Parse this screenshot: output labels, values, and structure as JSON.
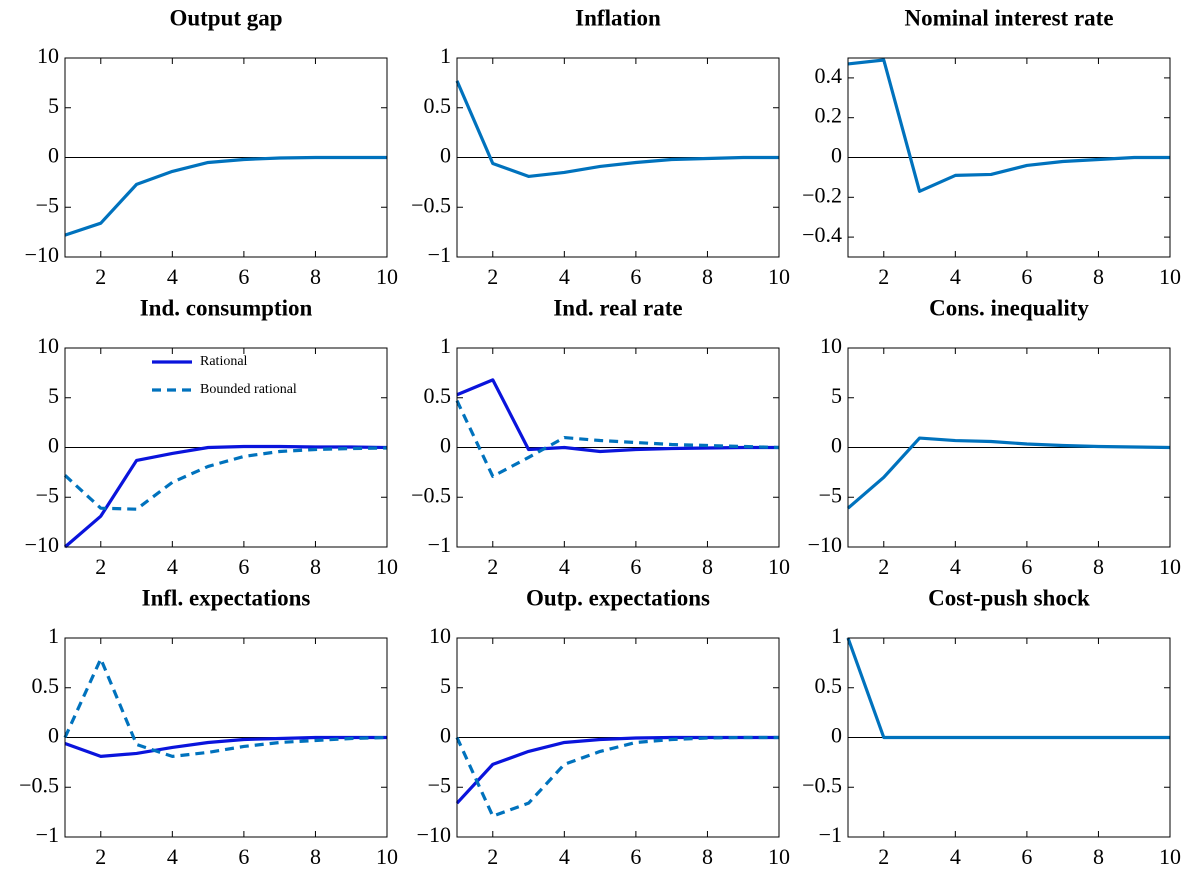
{
  "chart_data": [
    {
      "type": "line",
      "title": "Output gap",
      "x": [
        1,
        2,
        3,
        4,
        5,
        6,
        7,
        8,
        9,
        10
      ],
      "xlim": [
        1,
        10
      ],
      "xticks": [
        2,
        4,
        6,
        8,
        10
      ],
      "ylim": [
        -10,
        10
      ],
      "yticks": [
        {
          "value": -10,
          "label": "−10"
        },
        {
          "value": -5,
          "label": "−5"
        },
        0,
        5,
        10
      ],
      "color": "#0072bd",
      "values": [
        -7.8,
        -6.6,
        -2.7,
        -1.4,
        -0.5,
        -0.2,
        -0.05,
        0,
        0,
        0
      ]
    },
    {
      "type": "line",
      "title": "Inflation",
      "x": [
        1,
        2,
        3,
        4,
        5,
        6,
        7,
        8,
        9,
        10
      ],
      "xlim": [
        1,
        10
      ],
      "xticks": [
        2,
        4,
        6,
        8,
        10
      ],
      "ylim": [
        -1,
        1
      ],
      "yticks": [
        {
          "value": -1,
          "label": "−1"
        },
        {
          "value": -0.5,
          "label": "−0.5"
        },
        0,
        0.5,
        1
      ],
      "color": "#0072bd",
      "values": [
        0.77,
        -0.06,
        -0.19,
        -0.15,
        -0.09,
        -0.05,
        -0.02,
        -0.01,
        0,
        0
      ]
    },
    {
      "type": "line",
      "title": "Nominal interest rate",
      "x": [
        1,
        2,
        3,
        4,
        5,
        6,
        7,
        8,
        9,
        10
      ],
      "xlim": [
        1,
        10
      ],
      "xticks": [
        2,
        4,
        6,
        8,
        10
      ],
      "ylim": [
        -0.5,
        0.5
      ],
      "yticks": [
        {
          "value": -0.4,
          "label": "−0.4"
        },
        {
          "value": -0.2,
          "label": "−0.2"
        },
        0,
        0.2,
        0.4
      ],
      "color": "#0072bd",
      "values": [
        0.47,
        0.49,
        -0.17,
        -0.09,
        -0.085,
        -0.04,
        -0.02,
        -0.01,
        0,
        0
      ]
    },
    {
      "type": "line",
      "title": "Ind. consumption",
      "x": [
        1,
        2,
        3,
        4,
        5,
        6,
        7,
        8,
        9,
        10
      ],
      "xlim": [
        1,
        10
      ],
      "xticks": [
        2,
        4,
        6,
        8,
        10
      ],
      "ylim": [
        -10,
        10
      ],
      "yticks": [
        {
          "value": -10,
          "label": "−10"
        },
        {
          "value": -5,
          "label": "−5"
        },
        0,
        5,
        10
      ],
      "legend": "upper right",
      "series": [
        {
          "name": "Rational",
          "color": "#0a14dc",
          "style": "solid",
          "values": [
            -10,
            -6.9,
            -1.3,
            -0.6,
            0,
            0.1,
            0.1,
            0.05,
            0.05,
            0
          ]
        },
        {
          "name": "Bounded rational",
          "color": "#0072bd",
          "style": "dashed",
          "values": [
            -2.8,
            -6.1,
            -6.2,
            -3.5,
            -1.9,
            -0.9,
            -0.4,
            -0.2,
            -0.1,
            -0.05
          ]
        }
      ]
    },
    {
      "type": "line",
      "title": "Ind. real rate",
      "x": [
        1,
        2,
        3,
        4,
        5,
        6,
        7,
        8,
        9,
        10
      ],
      "xlim": [
        1,
        10
      ],
      "xticks": [
        2,
        4,
        6,
        8,
        10
      ],
      "ylim": [
        -1,
        1
      ],
      "yticks": [
        {
          "value": -1,
          "label": "−1"
        },
        {
          "value": -0.5,
          "label": "−0.5"
        },
        0,
        0.5,
        1
      ],
      "series": [
        {
          "color": "#0a14dc",
          "style": "solid",
          "values": [
            0.53,
            0.68,
            -0.02,
            0,
            -0.04,
            -0.02,
            -0.01,
            -0.005,
            0,
            0
          ]
        },
        {
          "color": "#0072bd",
          "style": "dashed",
          "values": [
            0.47,
            -0.29,
            -0.1,
            0.1,
            0.07,
            0.05,
            0.03,
            0.02,
            0.01,
            0
          ]
        }
      ]
    },
    {
      "type": "line",
      "title": "Cons. inequality",
      "x": [
        1,
        2,
        3,
        4,
        5,
        6,
        7,
        8,
        9,
        10
      ],
      "xlim": [
        1,
        10
      ],
      "xticks": [
        2,
        4,
        6,
        8,
        10
      ],
      "ylim": [
        -10,
        10
      ],
      "yticks": [
        {
          "value": -10,
          "label": "−10"
        },
        {
          "value": -5,
          "label": "−5"
        },
        0,
        5,
        10
      ],
      "color": "#0072bd",
      "values": [
        -6.1,
        -3,
        0.95,
        0.7,
        0.6,
        0.35,
        0.2,
        0.1,
        0.05,
        0
      ]
    },
    {
      "type": "line",
      "title": "Infl. expectations",
      "x": [
        1,
        2,
        3,
        4,
        5,
        6,
        7,
        8,
        9,
        10
      ],
      "xlim": [
        1,
        10
      ],
      "xticks": [
        2,
        4,
        6,
        8,
        10
      ],
      "ylim": [
        -1,
        1
      ],
      "yticks": [
        {
          "value": -1,
          "label": "−1"
        },
        {
          "value": -0.5,
          "label": "−0.5"
        },
        0,
        0.5,
        1
      ],
      "series": [
        {
          "color": "#0a14dc",
          "style": "solid",
          "values": [
            -0.06,
            -0.19,
            -0.16,
            -0.1,
            -0.05,
            -0.02,
            -0.01,
            0,
            0,
            0
          ]
        },
        {
          "color": "#0072bd",
          "style": "dashed",
          "values": [
            0,
            0.79,
            -0.07,
            -0.19,
            -0.15,
            -0.09,
            -0.05,
            -0.03,
            -0.01,
            0
          ]
        }
      ]
    },
    {
      "type": "line",
      "title": "Outp. expectations",
      "x": [
        1,
        2,
        3,
        4,
        5,
        6,
        7,
        8,
        9,
        10
      ],
      "xlim": [
        1,
        10
      ],
      "xticks": [
        2,
        4,
        6,
        8,
        10
      ],
      "ylim": [
        -10,
        10
      ],
      "yticks": [
        {
          "value": -10,
          "label": "−10"
        },
        {
          "value": -5,
          "label": "−5"
        },
        0,
        5,
        10
      ],
      "series": [
        {
          "color": "#0a14dc",
          "style": "solid",
          "values": [
            -6.6,
            -2.7,
            -1.4,
            -0.5,
            -0.2,
            -0.05,
            0,
            0,
            0,
            0
          ]
        },
        {
          "color": "#0072bd",
          "style": "dashed",
          "values": [
            0,
            -7.9,
            -6.6,
            -2.7,
            -1.4,
            -0.5,
            -0.2,
            -0.05,
            0,
            0
          ]
        }
      ]
    },
    {
      "type": "line",
      "title": "Cost-push shock",
      "x": [
        1,
        2,
        3,
        4,
        5,
        6,
        7,
        8,
        9,
        10
      ],
      "xlim": [
        1,
        10
      ],
      "xticks": [
        2,
        4,
        6,
        8,
        10
      ],
      "ylim": [
        -1,
        1
      ],
      "yticks": [
        {
          "value": -1,
          "label": "−1"
        },
        {
          "value": -0.5,
          "label": "−0.5"
        },
        0,
        0.5,
        1
      ],
      "color": "#0072bd",
      "values": [
        1,
        0,
        0,
        0,
        0,
        0,
        0,
        0,
        0,
        0
      ]
    }
  ]
}
